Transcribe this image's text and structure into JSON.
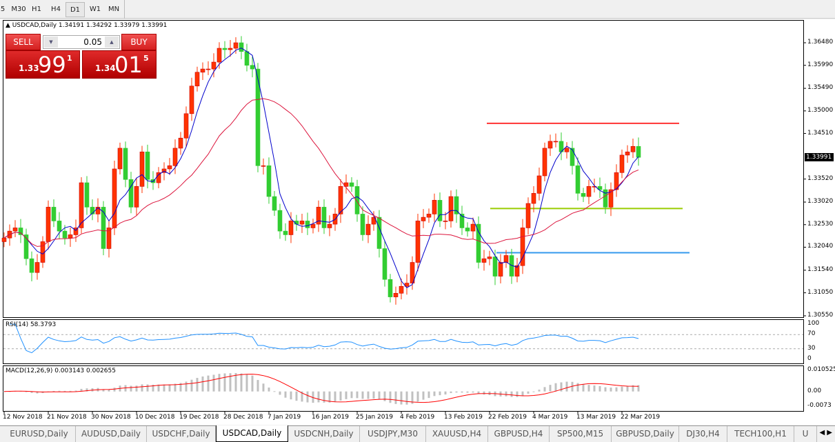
{
  "timeframes": [
    {
      "label": "5",
      "active": false
    },
    {
      "label": "M30",
      "active": false
    },
    {
      "label": "H1",
      "active": false
    },
    {
      "label": "H4",
      "active": false
    },
    {
      "label": "D1",
      "active": true
    },
    {
      "label": "W1",
      "active": false
    },
    {
      "label": "MN",
      "active": false
    }
  ],
  "chart_header": {
    "symbol": "USDCAD,Daily",
    "ohlc": "1.34191 1.34292 1.33979 1.33991"
  },
  "trade_panel": {
    "sell_label": "SELL",
    "buy_label": "BUY",
    "lot": "0.05",
    "sell": {
      "prefix": "1.33",
      "big": "99",
      "sup": "1"
    },
    "buy": {
      "prefix": "1.34",
      "big": "01",
      "sup": "5"
    }
  },
  "chart_data": [
    {
      "type": "candlestick",
      "title": "USDCAD,Daily",
      "up_color": "#ff3300",
      "down_color": "#32cd32",
      "closes": [
        1.3224,
        1.3239,
        1.3246,
        1.3231,
        1.3179,
        1.3149,
        1.3171,
        1.3216,
        1.3291,
        1.3261,
        1.3239,
        1.3224,
        1.3231,
        1.3246,
        1.3344,
        1.3291,
        1.3276,
        1.3291,
        1.3201,
        1.3246,
        1.3374,
        1.3419,
        1.3351,
        1.3291,
        1.3336,
        1.3411,
        1.3351,
        1.3344,
        1.3366,
        1.3374,
        1.3381,
        1.3419,
        1.3441,
        1.3494,
        1.3554,
        1.3584,
        1.3591,
        1.3591,
        1.3606,
        1.3636,
        1.3633,
        1.3636,
        1.3648,
        1.3629,
        1.3599,
        1.3591,
        1.3381,
        1.3381,
        1.3314,
        1.3284,
        1.3239,
        1.3231,
        1.3261,
        1.3254,
        1.3261,
        1.3246,
        1.3254,
        1.3291,
        1.3246,
        1.3254,
        1.3276,
        1.3336,
        1.3344,
        1.3336,
        1.3276,
        1.3231,
        1.3254,
        1.3269,
        1.3201,
        1.3134,
        1.3096,
        1.3104,
        1.3119,
        1.3126,
        1.3171,
        1.3261,
        1.3269,
        1.3276,
        1.3306,
        1.3261,
        1.3261,
        1.3314,
        1.3276,
        1.3246,
        1.3239,
        1.3254,
        1.3171,
        1.3179,
        1.3183,
        1.3141,
        1.3171,
        1.3186,
        1.3141,
        1.3164,
        1.3246,
        1.3299,
        1.3321,
        1.3359,
        1.3419,
        1.3434,
        1.3434,
        1.3411,
        1.3419,
        1.3381,
        1.3321,
        1.3314,
        1.3336,
        1.3336,
        1.3329,
        1.3291,
        1.3329,
        1.3366,
        1.3404,
        1.3411,
        1.3423,
        1.33991
      ],
      "ylim": [
        1.304,
        1.367
      ],
      "y_ticks": [
        "1.36480",
        "1.35990",
        "1.35490",
        "1.35000",
        "1.34510",
        "1.33520",
        "1.33020",
        "1.32530",
        "1.32040",
        "1.31540",
        "1.31050",
        "1.30550"
      ],
      "current_price": "1.33991",
      "x_ticks": [
        "12 Nov 2018",
        "21 Nov 2018",
        "30 Nov 2018",
        "10 Dec 2018",
        "19 Dec 2018",
        "28 Dec 2018",
        "7 Jan 2019",
        "16 Jan 2019",
        "25 Jan 2019",
        "4 Feb 2019",
        "13 Feb 2019",
        "22 Feb 2019",
        "4 Mar 2019",
        "13 Mar 2019",
        "22 Mar 2019"
      ],
      "moving_averages": [
        {
          "period": 5,
          "color": "#0000cc"
        },
        {
          "period": 20,
          "color": "#dc143c"
        }
      ],
      "horizontal_lines": [
        {
          "price": 1.3473,
          "color": "#ff3333"
        },
        {
          "price": 1.3288,
          "color": "#99cc00"
        },
        {
          "price": 1.3192,
          "color": "#3399ee"
        }
      ]
    },
    {
      "type": "line",
      "title": "RSI(14) 58.3793",
      "color": "#1e90ff",
      "ylim": [
        0,
        100
      ],
      "y_ticks": [
        "100",
        "70",
        "30",
        "0"
      ],
      "levels": [
        70,
        30
      ]
    },
    {
      "type": "bar",
      "title": "MACD(12,26,9) 0.003143 0.002655",
      "hist_color": "#c0c0c0",
      "signal_color": "#ff0000",
      "y_ticks": [
        "0.010525",
        "0.00",
        "-0.0073"
      ],
      "ylim": [
        -0.0073,
        0.010525
      ]
    }
  ],
  "tabs": [
    {
      "label": "EURUSD,Daily"
    },
    {
      "label": "AUDUSD,Daily"
    },
    {
      "label": "USDCHF,Daily"
    },
    {
      "label": "USDCAD,Daily",
      "active": true
    },
    {
      "label": "USDCNH,Daily"
    },
    {
      "label": "USDJPY,M30"
    },
    {
      "label": "XAUUSD,H4"
    },
    {
      "label": "GBPUSD,H4"
    },
    {
      "label": "SP500,M15"
    },
    {
      "label": "GBPUSD,Daily"
    },
    {
      "label": "DJ30,H4"
    },
    {
      "label": "TECH100,H1"
    },
    {
      "label": "U"
    }
  ]
}
